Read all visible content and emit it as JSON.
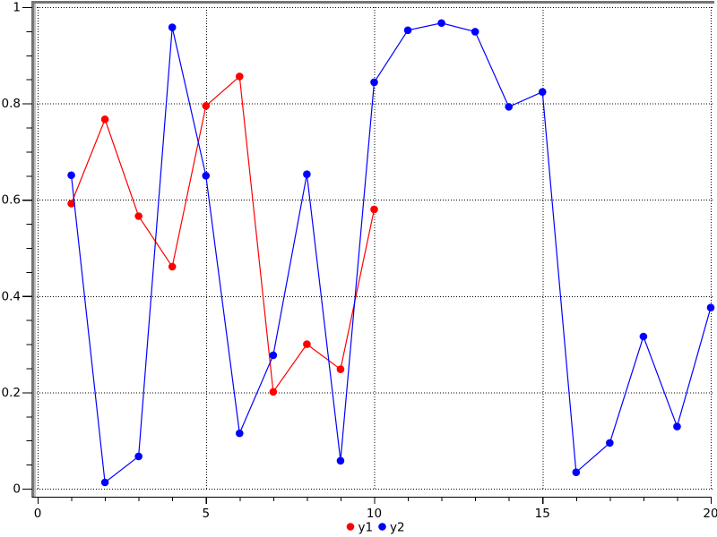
{
  "chart_data": {
    "type": "line",
    "title": "",
    "xlabel": "",
    "ylabel": "",
    "xlim": [
      0,
      20
    ],
    "ylim": [
      0,
      1
    ],
    "x_major_ticks": [
      0,
      5,
      10,
      15,
      20
    ],
    "x_tick_labels": [
      "0",
      "5",
      "10",
      "15",
      "20"
    ],
    "x_minor_tick_step": 1,
    "y_major_ticks": [
      0,
      0.2,
      0.4,
      0.6,
      0.8,
      1
    ],
    "y_tick_labels": [
      "0",
      "0.2",
      "0.4",
      "0.6",
      "0.8",
      "1"
    ],
    "y_minor_tick_step": 0.05,
    "grid": "dotted black lines at major ticks only",
    "legend": {
      "position": "bottom-center",
      "entries": [
        {
          "label": "y1",
          "color": "#ff0000",
          "marker": "circle"
        },
        {
          "label": "y2",
          "color": "#0000ff",
          "marker": "circle"
        }
      ]
    },
    "series": [
      {
        "name": "y1",
        "color": "#ff0000",
        "marker": "circle",
        "x": [
          1,
          2,
          3,
          4,
          5,
          6,
          7,
          8,
          9,
          10
        ],
        "y": [
          0.592,
          0.767,
          0.566,
          0.461,
          0.795,
          0.856,
          0.201,
          0.3,
          0.248,
          0.58
        ]
      },
      {
        "name": "y2",
        "color": "#0000ff",
        "marker": "circle",
        "x": [
          1,
          2,
          3,
          4,
          5,
          6,
          7,
          8,
          9,
          10,
          11,
          12,
          13,
          14,
          15,
          16,
          17,
          18,
          19,
          20
        ],
        "y": [
          0.651,
          0.013,
          0.067,
          0.958,
          0.65,
          0.115,
          0.277,
          0.653,
          0.058,
          0.844,
          0.952,
          0.967,
          0.949,
          0.793,
          0.824,
          0.034,
          0.095,
          0.316,
          0.129,
          0.376
        ]
      }
    ],
    "colors": {
      "background": "#ffffff",
      "axis": "#000000",
      "grid": "#000000",
      "frame_dark": "#757575",
      "frame_light": "#bdbdbd",
      "series_y1": "#ff0000",
      "series_y2": "#0000ff"
    }
  }
}
